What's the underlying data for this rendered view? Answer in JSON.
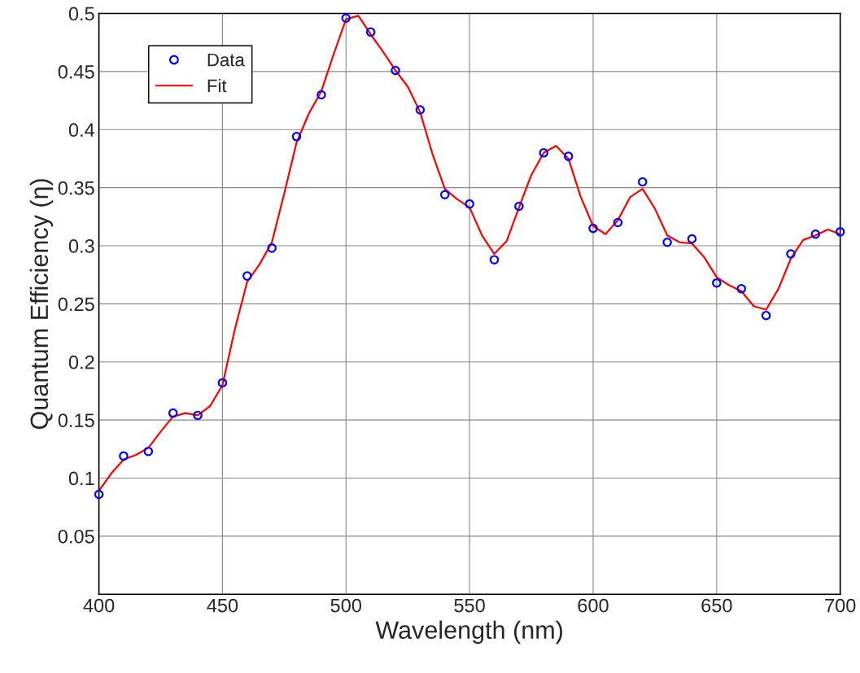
{
  "chart_data": {
    "type": "scatter",
    "xlabel": "Wavelength (nm)",
    "ylabel": "Quantum Efficiency (η)",
    "xlim": [
      400,
      700
    ],
    "xticks": [
      400,
      450,
      500,
      550,
      600,
      650,
      700
    ],
    "ylim": [
      0,
      0.5
    ],
    "yticks": [
      0.05,
      0.1,
      0.15,
      0.2,
      0.25,
      0.3,
      0.35,
      0.4,
      0.45,
      0.5
    ],
    "grid": true,
    "legend": "top left",
    "series": [
      {
        "name": "Data",
        "marker": "circle",
        "color": "#0000ff",
        "x": [
          400,
          410,
          420,
          430,
          440,
          450,
          460,
          470,
          480,
          490,
          500,
          510,
          520,
          530,
          540,
          550,
          560,
          570,
          580,
          590,
          600,
          610,
          620,
          630,
          640,
          650,
          660,
          670,
          680,
          690,
          700
        ],
        "values": [
          0.086,
          0.119,
          0.123,
          0.156,
          0.154,
          0.182,
          0.274,
          0.298,
          0.394,
          0.43,
          0.496,
          0.484,
          0.451,
          0.417,
          0.344,
          0.336,
          0.288,
          0.334,
          0.38,
          0.377,
          0.315,
          0.32,
          0.355,
          0.303,
          0.306,
          0.268,
          0.263,
          0.24,
          0.293,
          0.31,
          0.312
        ]
      },
      {
        "name": "Fit",
        "type": "line",
        "line_style": "solid",
        "color": "#ff0000",
        "x": [
          400,
          405,
          410,
          415,
          420,
          425,
          430,
          435,
          440,
          445,
          450,
          455,
          460,
          465,
          470,
          475,
          480,
          485,
          490,
          495,
          500,
          505,
          510,
          515,
          520,
          525,
          530,
          535,
          540,
          545,
          550,
          555,
          560,
          565,
          570,
          575,
          580,
          585,
          590,
          595,
          600,
          605,
          610,
          615,
          620,
          625,
          630,
          635,
          640,
          645,
          650,
          655,
          660,
          665,
          670,
          675,
          680,
          685,
          690,
          695,
          700
        ],
        "values": [
          0.089,
          0.104,
          0.116,
          0.12,
          0.126,
          0.14,
          0.153,
          0.156,
          0.154,
          0.162,
          0.18,
          0.228,
          0.269,
          0.284,
          0.303,
          0.345,
          0.389,
          0.414,
          0.433,
          0.465,
          0.495,
          0.498,
          0.482,
          0.467,
          0.451,
          0.437,
          0.415,
          0.379,
          0.349,
          0.34,
          0.333,
          0.309,
          0.293,
          0.304,
          0.333,
          0.361,
          0.38,
          0.386,
          0.375,
          0.342,
          0.317,
          0.31,
          0.322,
          0.342,
          0.349,
          0.332,
          0.309,
          0.303,
          0.302,
          0.29,
          0.273,
          0.266,
          0.261,
          0.248,
          0.245,
          0.263,
          0.289,
          0.305,
          0.309,
          0.314,
          0.31
        ]
      }
    ]
  }
}
